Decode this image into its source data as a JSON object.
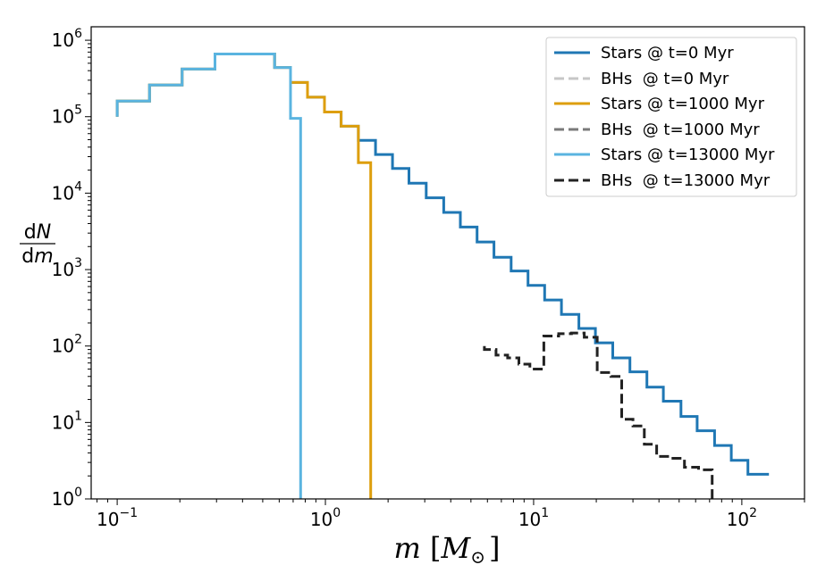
{
  "chart_data": {
    "type": "line",
    "title": "",
    "xlabel": "m [M_⊙]",
    "xlabel_parts": {
      "symbol": "m",
      "open_bracket": "[",
      "mass_symbol": "M",
      "subscript": "⊙",
      "close_bracket": "]"
    },
    "ylabel": "dN/dm",
    "ylabel_parts": {
      "numerator_d": "d",
      "numerator_var": "N",
      "denominator_d": "d",
      "denominator_var": "m"
    },
    "xscale": "log",
    "yscale": "log",
    "xlim": [
      0.075,
      200
    ],
    "ylim": [
      1,
      1500000
    ],
    "x_ticks": [
      {
        "value": 0.1,
        "base": "10",
        "exp": "−1"
      },
      {
        "value": 1,
        "base": "10",
        "exp": "0"
      },
      {
        "value": 10,
        "base": "10",
        "exp": "1"
      },
      {
        "value": 100,
        "base": "10",
        "exp": "2"
      }
    ],
    "y_ticks": [
      {
        "value": 1,
        "base": "10",
        "exp": "0"
      },
      {
        "value": 10,
        "base": "10",
        "exp": "1"
      },
      {
        "value": 100,
        "base": "10",
        "exp": "2"
      },
      {
        "value": 1000,
        "base": "10",
        "exp": "3"
      },
      {
        "value": 10000,
        "base": "10",
        "exp": "4"
      },
      {
        "value": 100000,
        "base": "10",
        "exp": "5"
      },
      {
        "value": 1000000,
        "base": "10",
        "exp": "6"
      }
    ],
    "legend_position": "top-right",
    "series": [
      {
        "name": "Stars @ t=0 Myr",
        "color": "#1f77b4",
        "style": "solid",
        "points": [
          [
            0.1,
            100000
          ],
          [
            0.1,
            160000
          ],
          [
            0.143,
            160000
          ],
          [
            0.143,
            260000
          ],
          [
            0.205,
            260000
          ],
          [
            0.205,
            420000
          ],
          [
            0.295,
            420000
          ],
          [
            0.295,
            660000
          ],
          [
            0.57,
            660000
          ],
          [
            0.57,
            440000
          ],
          [
            0.68,
            440000
          ],
          [
            0.68,
            280000
          ],
          [
            0.82,
            280000
          ],
          [
            0.82,
            180000
          ],
          [
            0.99,
            180000
          ],
          [
            0.99,
            115000
          ],
          [
            1.19,
            115000
          ],
          [
            1.19,
            75000
          ],
          [
            1.44,
            75000
          ],
          [
            1.44,
            49000
          ],
          [
            1.74,
            49000
          ],
          [
            1.74,
            32000
          ],
          [
            2.1,
            32000
          ],
          [
            2.1,
            21000
          ],
          [
            2.52,
            21000
          ],
          [
            2.52,
            13500
          ],
          [
            3.05,
            13500
          ],
          [
            3.05,
            8700
          ],
          [
            3.7,
            8700
          ],
          [
            3.7,
            5600
          ],
          [
            4.45,
            5600
          ],
          [
            4.45,
            3600
          ],
          [
            5.35,
            3600
          ],
          [
            5.35,
            2300
          ],
          [
            6.45,
            2300
          ],
          [
            6.45,
            1450
          ],
          [
            7.8,
            1450
          ],
          [
            7.8,
            960
          ],
          [
            9.4,
            960
          ],
          [
            9.4,
            620
          ],
          [
            11.3,
            620
          ],
          [
            11.3,
            400
          ],
          [
            13.6,
            400
          ],
          [
            13.6,
            260
          ],
          [
            16.5,
            260
          ],
          [
            16.5,
            170
          ],
          [
            19.8,
            170
          ],
          [
            19.8,
            110
          ],
          [
            24,
            110
          ],
          [
            24,
            70
          ],
          [
            29,
            70
          ],
          [
            29,
            46
          ],
          [
            35,
            46
          ],
          [
            35,
            29
          ],
          [
            42,
            29
          ],
          [
            42,
            19
          ],
          [
            51,
            19
          ],
          [
            51,
            12
          ],
          [
            61,
            12
          ],
          [
            61,
            7.8
          ],
          [
            74,
            7.8
          ],
          [
            74,
            5
          ],
          [
            89,
            5
          ],
          [
            89,
            3.2
          ],
          [
            107,
            3.2
          ],
          [
            107,
            2.1
          ],
          [
            135,
            2.1
          ]
        ]
      },
      {
        "name": "BHs  @ t=0 Myr",
        "color": "#c7c7c7",
        "style": "dashed",
        "points": []
      },
      {
        "name": "Stars @ t=1000 Myr",
        "color": "#dd9e0c",
        "style": "solid",
        "points": [
          [
            0.1,
            100000
          ],
          [
            0.1,
            160000
          ],
          [
            0.143,
            160000
          ],
          [
            0.143,
            260000
          ],
          [
            0.205,
            260000
          ],
          [
            0.205,
            420000
          ],
          [
            0.295,
            420000
          ],
          [
            0.295,
            660000
          ],
          [
            0.57,
            660000
          ],
          [
            0.57,
            440000
          ],
          [
            0.68,
            440000
          ],
          [
            0.68,
            280000
          ],
          [
            0.82,
            280000
          ],
          [
            0.82,
            180000
          ],
          [
            0.99,
            180000
          ],
          [
            0.99,
            115000
          ],
          [
            1.19,
            115000
          ],
          [
            1.19,
            75000
          ],
          [
            1.44,
            75000
          ],
          [
            1.44,
            25000
          ],
          [
            1.65,
            25000
          ],
          [
            1.65,
            1
          ]
        ]
      },
      {
        "name": "BHs  @ t=1000 Myr",
        "color": "#7a7a7a",
        "style": "dashed",
        "points": []
      },
      {
        "name": "Stars @ t=13000 Myr",
        "color": "#5ab4e0",
        "style": "solid",
        "points": [
          [
            0.1,
            100000
          ],
          [
            0.1,
            160000
          ],
          [
            0.143,
            160000
          ],
          [
            0.143,
            260000
          ],
          [
            0.205,
            260000
          ],
          [
            0.205,
            420000
          ],
          [
            0.295,
            420000
          ],
          [
            0.295,
            660000
          ],
          [
            0.57,
            660000
          ],
          [
            0.57,
            440000
          ],
          [
            0.68,
            440000
          ],
          [
            0.68,
            95000
          ],
          [
            0.76,
            95000
          ],
          [
            0.76,
            1
          ]
        ]
      },
      {
        "name": "BHs  @ t=13000 Myr",
        "color": "#222222",
        "style": "dashed",
        "points": [
          [
            5.8,
            100
          ],
          [
            5.8,
            90
          ],
          [
            6.6,
            90
          ],
          [
            6.6,
            76
          ],
          [
            7.5,
            76
          ],
          [
            7.5,
            70
          ],
          [
            8.5,
            70
          ],
          [
            8.5,
            58
          ],
          [
            9.6,
            58
          ],
          [
            9.6,
            50
          ],
          [
            11.2,
            50
          ],
          [
            11.2,
            135
          ],
          [
            13.2,
            135
          ],
          [
            13.2,
            145
          ],
          [
            15.2,
            145
          ],
          [
            15.2,
            148
          ],
          [
            17.5,
            148
          ],
          [
            17.5,
            130
          ],
          [
            20.2,
            130
          ],
          [
            20.2,
            45
          ],
          [
            23.5,
            45
          ],
          [
            23.5,
            40
          ],
          [
            26.5,
            40
          ],
          [
            26.5,
            11
          ],
          [
            30,
            11
          ],
          [
            30,
            9
          ],
          [
            34,
            9
          ],
          [
            34,
            5.2
          ],
          [
            39,
            5.2
          ],
          [
            39,
            3.6
          ],
          [
            46,
            3.6
          ],
          [
            46,
            3.4
          ],
          [
            53,
            3.4
          ],
          [
            53,
            2.6
          ],
          [
            62,
            2.6
          ],
          [
            62,
            2.4
          ],
          [
            72,
            2.4
          ],
          [
            72,
            1.0
          ]
        ]
      }
    ]
  }
}
